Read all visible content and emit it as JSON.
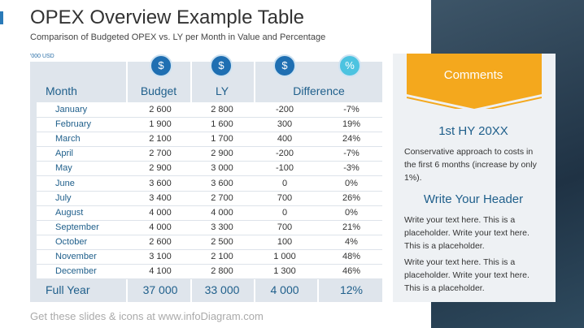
{
  "header": {
    "title": "OPEX Overview Example Table",
    "subtitle": "Comparison of Budgeted OPEX vs. LY per Month in Value and Percentage",
    "unit": "'000 USD"
  },
  "table": {
    "icons": [
      "$",
      "$",
      "$",
      "%"
    ],
    "columns": [
      "Month",
      "Budget",
      "LY",
      "Difference"
    ],
    "rows": [
      [
        "January",
        "2 600",
        "2 800",
        "-200",
        "-7%"
      ],
      [
        "February",
        "1 900",
        "1 600",
        "300",
        "19%"
      ],
      [
        "March",
        "2 100",
        "1 700",
        "400",
        "24%"
      ],
      [
        "April",
        "2 700",
        "2 900",
        "-200",
        "-7%"
      ],
      [
        "May",
        "2 900",
        "3 000",
        "-100",
        "-3%"
      ],
      [
        "June",
        "3 600",
        "3 600",
        "0",
        "0%"
      ],
      [
        "July",
        "3 400",
        "2 700",
        "700",
        "26%"
      ],
      [
        "August",
        "4 000",
        "4 000",
        "0",
        "0%"
      ],
      [
        "September",
        "4 000",
        "3 300",
        "700",
        "21%"
      ],
      [
        "October",
        "2 600",
        "2 500",
        "100",
        "4%"
      ],
      [
        "November",
        "3 100",
        "2 100",
        "1 000",
        "48%"
      ],
      [
        "December",
        "4 100",
        "2 800",
        "1 300",
        "46%"
      ]
    ],
    "total": [
      "Full Year",
      "37 000",
      "33 000",
      "4 000",
      "12%"
    ]
  },
  "comments": {
    "title": "Comments",
    "sections": [
      {
        "heading": "1st HY 20XX",
        "paragraphs": [
          "Conservative approach to costs in the first 6 months (increase by only 1%)."
        ]
      },
      {
        "heading": "Write Your Header",
        "paragraphs": [
          "Write your text here. This is a placeholder. Write your text here. This is a placeholder.",
          "Write your text here. This is a placeholder. Write your text here. This is a placeholder."
        ]
      }
    ]
  },
  "footer": "Get these slides & icons at www.infoDiagram.com"
}
